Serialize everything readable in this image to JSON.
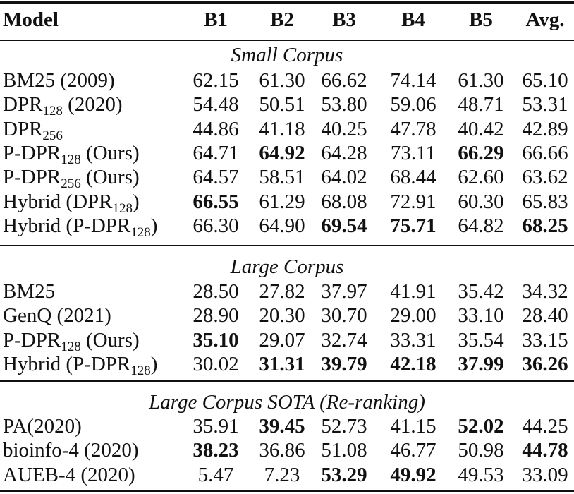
{
  "header": {
    "model": "Model",
    "b1": "B1",
    "b2": "B2",
    "b3": "B3",
    "b4": "B4",
    "b5": "B5",
    "avg": "Avg."
  },
  "sections": [
    {
      "title": "Small Corpus",
      "rows": [
        {
          "pre": "BM25 (2009)",
          "sub": "",
          "post": "",
          "v": [
            "62.15",
            "61.30",
            "66.62",
            "74.14",
            "61.30",
            "65.10"
          ],
          "bold": []
        },
        {
          "pre": "DPR",
          "sub": "128",
          "post": " (2020)",
          "v": [
            "54.48",
            "50.51",
            "53.80",
            "59.06",
            "48.71",
            "53.31"
          ],
          "bold": []
        },
        {
          "pre": "DPR",
          "sub": "256",
          "post": "",
          "v": [
            "44.86",
            "41.18",
            "40.25",
            "47.78",
            "40.42",
            "42.89"
          ],
          "bold": []
        },
        {
          "pre": "P-DPR",
          "sub": "128",
          "post": " (Ours)",
          "v": [
            "64.71",
            "64.92",
            "64.28",
            "73.11",
            "66.29",
            "66.66"
          ],
          "bold": [
            1,
            4
          ]
        },
        {
          "pre": "P-DPR",
          "sub": "256",
          "post": " (Ours)",
          "v": [
            "64.57",
            "58.51",
            "64.02",
            "68.44",
            "62.60",
            "63.62"
          ],
          "bold": []
        },
        {
          "pre": "Hybrid (DPR",
          "sub": "128",
          "post": ")",
          "v": [
            "66.55",
            "61.29",
            "68.08",
            "72.91",
            "60.30",
            "65.83"
          ],
          "bold": [
            0
          ]
        },
        {
          "pre": "Hybrid (P-DPR",
          "sub": "128",
          "post": ")",
          "v": [
            "66.30",
            "64.90",
            "69.54",
            "75.71",
            "64.82",
            "68.25"
          ],
          "bold": [
            2,
            3,
            5
          ]
        }
      ]
    },
    {
      "title": "Large Corpus",
      "rows": [
        {
          "pre": "BM25",
          "sub": "",
          "post": "",
          "v": [
            "28.50",
            "27.82",
            "37.97",
            "41.91",
            "35.42",
            "34.32"
          ],
          "bold": []
        },
        {
          "pre": "GenQ (2021)",
          "sub": "",
          "post": "",
          "v": [
            "28.90",
            "20.30",
            "30.70",
            "29.00",
            "33.10",
            "28.40"
          ],
          "bold": []
        },
        {
          "pre": "P-DPR",
          "sub": "128",
          "post": " (Ours)",
          "v": [
            "35.10",
            "29.07",
            "32.74",
            "33.31",
            "35.54",
            "33.15"
          ],
          "bold": [
            0
          ]
        },
        {
          "pre": "Hybrid (P-DPR",
          "sub": "128",
          "post": ")",
          "v": [
            "30.02",
            "31.31",
            "39.79",
            "42.18",
            "37.99",
            "36.26"
          ],
          "bold": [
            1,
            2,
            3,
            4,
            5
          ]
        }
      ]
    },
    {
      "title": "Large Corpus SOTA (Re-ranking)",
      "rows": [
        {
          "pre": "PA(2020)",
          "sub": "",
          "post": "",
          "v": [
            "35.91",
            "39.45",
            "52.73",
            "41.15",
            "52.02",
            "44.25"
          ],
          "bold": [
            1,
            4
          ]
        },
        {
          "pre": "bioinfo-4 (2020)",
          "sub": "",
          "post": "",
          "v": [
            "38.23",
            "36.86",
            "51.08",
            "46.77",
            "50.98",
            "44.78"
          ],
          "bold": [
            0,
            5
          ]
        },
        {
          "pre": "AUEB-4 (2020)",
          "sub": "",
          "post": "",
          "v": [
            "5.47",
            "7.23",
            "53.29",
            "49.92",
            "49.53",
            "33.09"
          ],
          "bold": [
            2,
            3
          ]
        }
      ]
    }
  ]
}
